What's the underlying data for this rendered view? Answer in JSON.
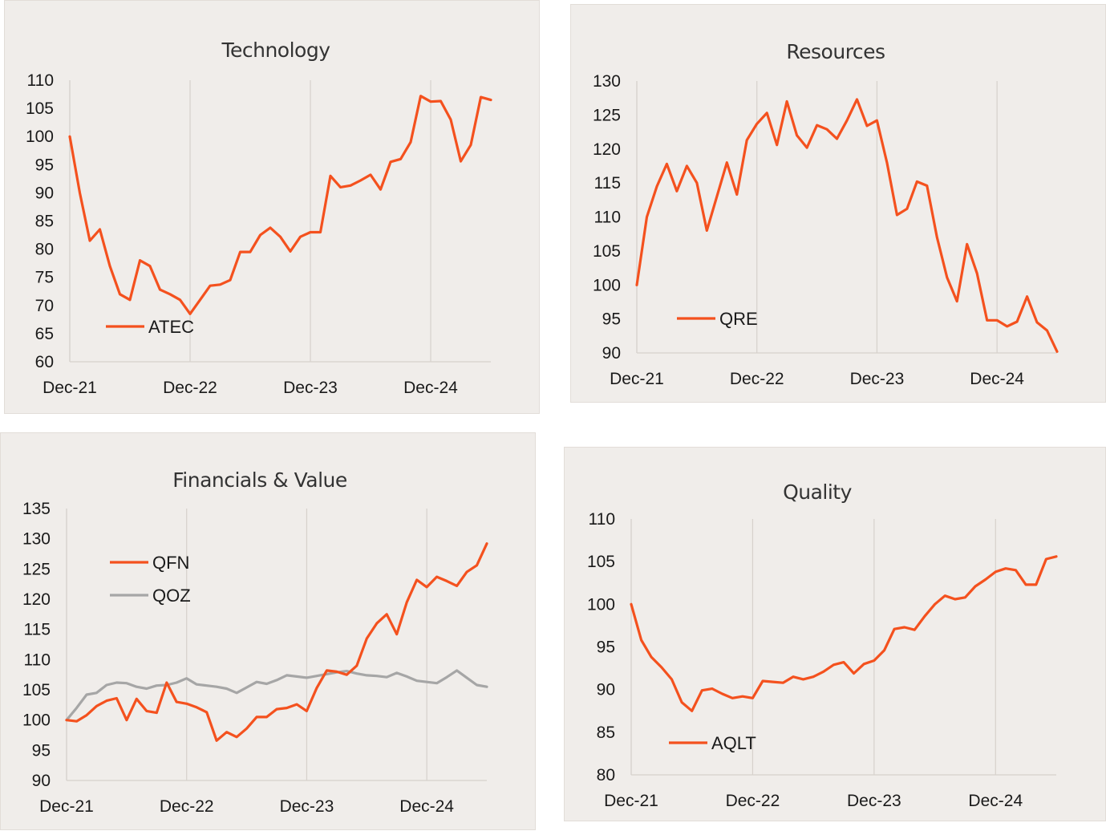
{
  "chart_data": [
    {
      "type": "line",
      "title": "Technology",
      "x_ticks": [
        "Dec-21",
        "Dec-22",
        "Dec-23",
        "Dec-24"
      ],
      "y_ticks": [
        "60",
        "65",
        "70",
        "75",
        "80",
        "85",
        "90",
        "95",
        "100",
        "105",
        "110"
      ],
      "ylim": [
        60,
        110
      ],
      "grid": "vertical",
      "legend_position": "bottom-left",
      "series": [
        {
          "name": "ATEC",
          "color": "#f4511e",
          "values": [
            100,
            90,
            81.5,
            83.5,
            77,
            72,
            71,
            78,
            77,
            72.8,
            72,
            71,
            68.5,
            71,
            73.5,
            73.7,
            74.5,
            79.5,
            79.5,
            82.5,
            83.8,
            82.2,
            79.6,
            82.2,
            83,
            83,
            93,
            91,
            91.3,
            92.2,
            93.2,
            90.6,
            95.5,
            96,
            99,
            107.2,
            106.2,
            106.3,
            103,
            95.6,
            98.5,
            107,
            106.5
          ]
        }
      ]
    },
    {
      "type": "line",
      "title": "Resources",
      "x_ticks": [
        "Dec-21",
        "Dec-22",
        "Dec-23",
        "Dec-24"
      ],
      "y_ticks": [
        "90",
        "95",
        "100",
        "105",
        "110",
        "115",
        "120",
        "125",
        "130"
      ],
      "ylim": [
        90,
        130
      ],
      "grid": "vertical",
      "legend_position": "bottom-left",
      "series": [
        {
          "name": "QRE",
          "color": "#f4511e",
          "values": [
            100,
            110,
            114.5,
            117.8,
            113.8,
            117.5,
            115,
            108,
            113,
            118,
            113.3,
            121.3,
            123.7,
            125.3,
            120.6,
            127,
            122,
            120.2,
            123.5,
            122.9,
            121.5,
            124.2,
            127.3,
            123.4,
            124.2,
            118,
            110.3,
            111.2,
            115.2,
            114.6,
            107,
            101.1,
            97.6,
            106,
            101.7,
            94.8,
            94.8,
            93.9,
            94.6,
            98.3,
            94.5,
            93.3,
            90.2
          ]
        }
      ]
    },
    {
      "type": "line",
      "title": "Financials & Value",
      "x_ticks": [
        "Dec-21",
        "Dec-22",
        "Dec-23",
        "Dec-24"
      ],
      "y_ticks": [
        "90",
        "95",
        "100",
        "105",
        "110",
        "115",
        "120",
        "125",
        "130",
        "135"
      ],
      "ylim": [
        90,
        135
      ],
      "grid": "vertical",
      "legend_position": "top-left",
      "series": [
        {
          "name": "QFN",
          "color": "#f4511e",
          "values": [
            100,
            99.8,
            100.8,
            102.3,
            103.2,
            103.6,
            100,
            103.5,
            101.5,
            101.2,
            106.2,
            103,
            102.7,
            102.1,
            101.3,
            96.6,
            98,
            97.2,
            98.6,
            100.5,
            100.5,
            101.8,
            102,
            102.6,
            101.5,
            105.3,
            108.2,
            108,
            107.5,
            109,
            113.5,
            116,
            117.5,
            114.2,
            119.5,
            123.2,
            122,
            123.7,
            123,
            122.2,
            124.5,
            125.6,
            129.2
          ]
        },
        {
          "name": "QOZ",
          "color": "#a6a6a6",
          "values": [
            100,
            102,
            104.2,
            104.5,
            105.8,
            106.2,
            106.1,
            105.5,
            105.2,
            105.7,
            105.8,
            106.2,
            106.9,
            105.9,
            105.7,
            105.5,
            105.2,
            104.5,
            105.4,
            106.3,
            106,
            106.6,
            107.4,
            107.2,
            107,
            107.3,
            107.6,
            107.9,
            108.1,
            107.7,
            107.4,
            107.3,
            107.1,
            107.8,
            107.2,
            106.5,
            106.3,
            106.1,
            107.1,
            108.2,
            107,
            105.8,
            105.5
          ]
        }
      ]
    },
    {
      "type": "line",
      "title": "Quality",
      "x_ticks": [
        "Dec-21",
        "Dec-22",
        "Dec-23",
        "Dec-24"
      ],
      "y_ticks": [
        "80",
        "85",
        "90",
        "95",
        "100",
        "105",
        "110"
      ],
      "ylim": [
        80,
        110
      ],
      "grid": "vertical",
      "legend_position": "bottom-left",
      "series": [
        {
          "name": "AQLT",
          "color": "#f4511e",
          "values": [
            100,
            95.8,
            93.8,
            92.6,
            91.2,
            88.5,
            87.5,
            89.9,
            90.1,
            89.5,
            89,
            89.2,
            89,
            91,
            90.9,
            90.8,
            91.5,
            91.2,
            91.5,
            92.1,
            92.9,
            93.2,
            91.9,
            93,
            93.4,
            94.6,
            97.1,
            97.3,
            97,
            98.6,
            100,
            101,
            100.6,
            100.8,
            102.1,
            102.9,
            103.8,
            104.2,
            104,
            102.3,
            102.3,
            105.3,
            105.6
          ]
        }
      ]
    }
  ]
}
